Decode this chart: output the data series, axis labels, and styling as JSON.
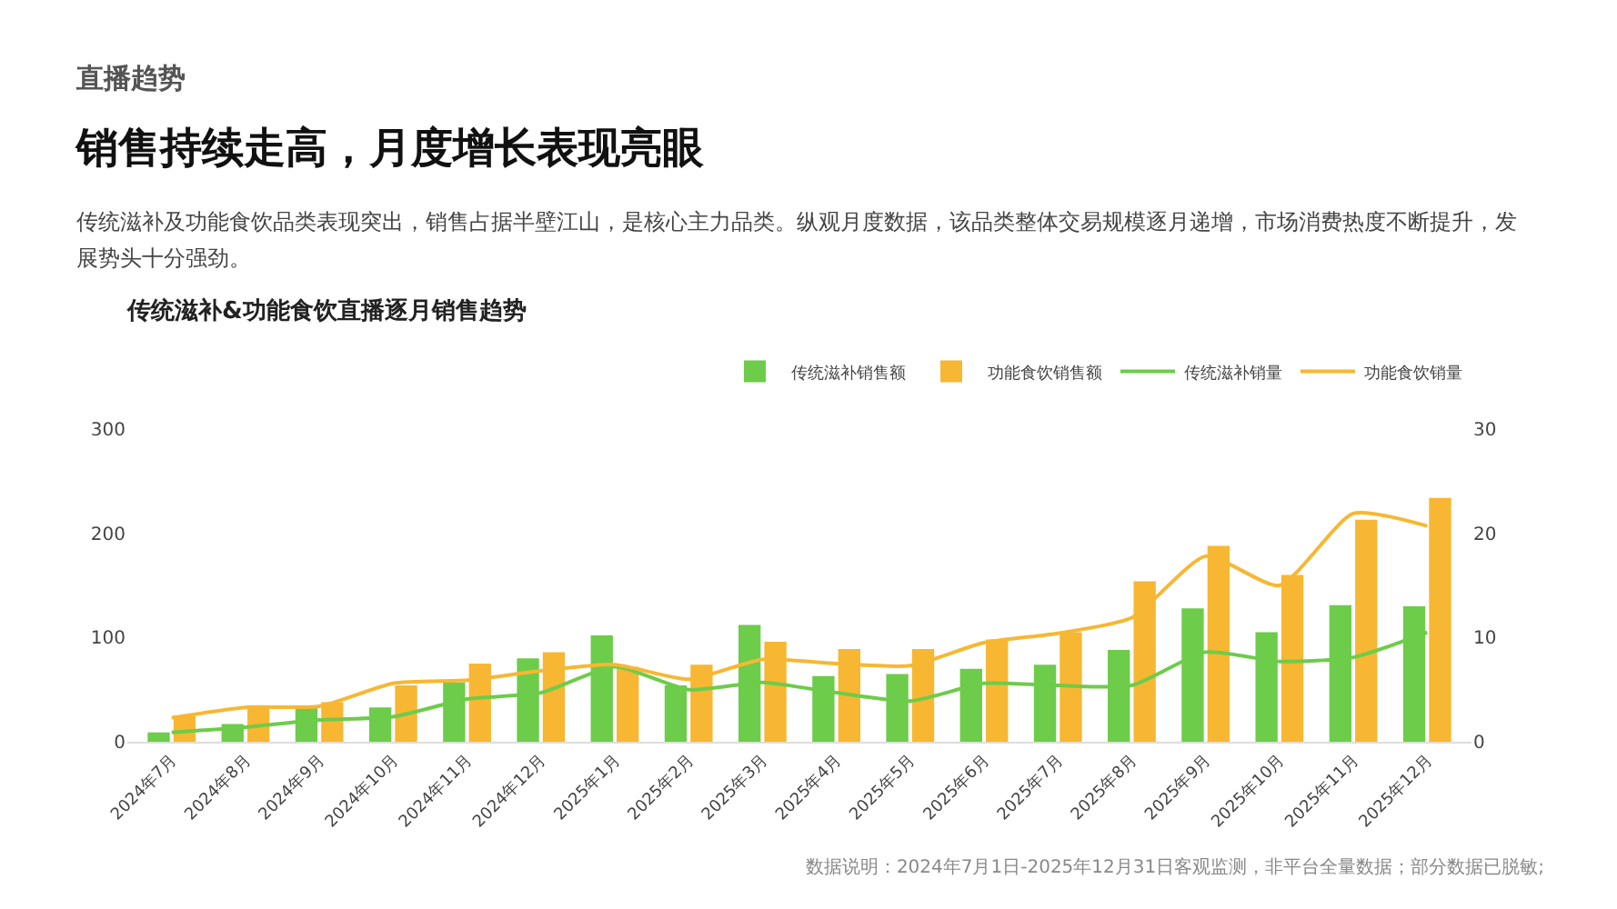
{
  "chart_data": {
    "type": "bar",
    "title": "传统滋补&功能食饮直播逐月销售趋势",
    "annotations": [
      "直播趋势",
      "销售持续走高，月度增长表现亮眼",
      "传统滋补及功能食饮品类表现突出，销售占据半壁江山，是核心主力品类。纵观月度数据，该品类整体交易规模逐月递增，市场消费热度不断提升，发展势头十分强劲。",
      "数据说明：2024年7月1日-2025年12月31日客观监测，非平台全量数据；部分数据已脱敏;"
    ],
    "categories": [
      "2024年7月",
      "2024年8月",
      "2024年9月",
      "2024年10月",
      "2024年11月",
      "2024年12月",
      "2025年1月",
      "2025年2月",
      "2025年3月",
      "2025年4月",
      "2025年5月",
      "2025年6月",
      "2025年7月",
      "2025年8月",
      "2025年9月",
      "2025年10月",
      "2025年11月",
      "2025年12月"
    ],
    "series": [
      {
        "name": "传统滋补销售额",
        "color": "#6dcc4a",
        "values": [
          9,
          17,
          33,
          33,
          57,
          80,
          102,
          54,
          112,
          63,
          65,
          70,
          74,
          88,
          128,
          105,
          131,
          130
        ]
      },
      {
        "name": "功能食饮销售额",
        "color": "#f7b733",
        "values": [
          25,
          34,
          38,
          54,
          75,
          86,
          72,
          74,
          96,
          89,
          89,
          98,
          105,
          154,
          188,
          160,
          213,
          234
        ]
      },
      {
        "name": "传统滋补销量",
        "type": "line",
        "axis": "y2",
        "color": "#6dcc4a",
        "values": [
          0.9,
          1.4,
          2.1,
          2.4,
          4.1,
          4.7,
          7.2,
          5.0,
          5.7,
          4.7,
          3.9,
          5.6,
          5.4,
          5.4,
          8.6,
          7.7,
          8.1,
          10.5
        ]
      },
      {
        "name": "功能食饮销量",
        "type": "line",
        "axis": "y2",
        "color": "#f7b733",
        "values": [
          2.3,
          3.3,
          3.4,
          5.6,
          5.9,
          6.8,
          7.4,
          6.0,
          7.9,
          7.5,
          7.3,
          9.5,
          10.4,
          11.9,
          17.8,
          15.0,
          21.9,
          20.7
        ]
      }
    ],
    "ylim": [
      0,
      300
    ],
    "yticks": [
      0,
      100,
      200,
      300
    ],
    "y2lim": [
      0,
      30
    ],
    "y2ticks": [
      0,
      10,
      20,
      30
    ],
    "grid": false,
    "legend": "top right",
    "marker": "none",
    "line_style": "solid"
  }
}
